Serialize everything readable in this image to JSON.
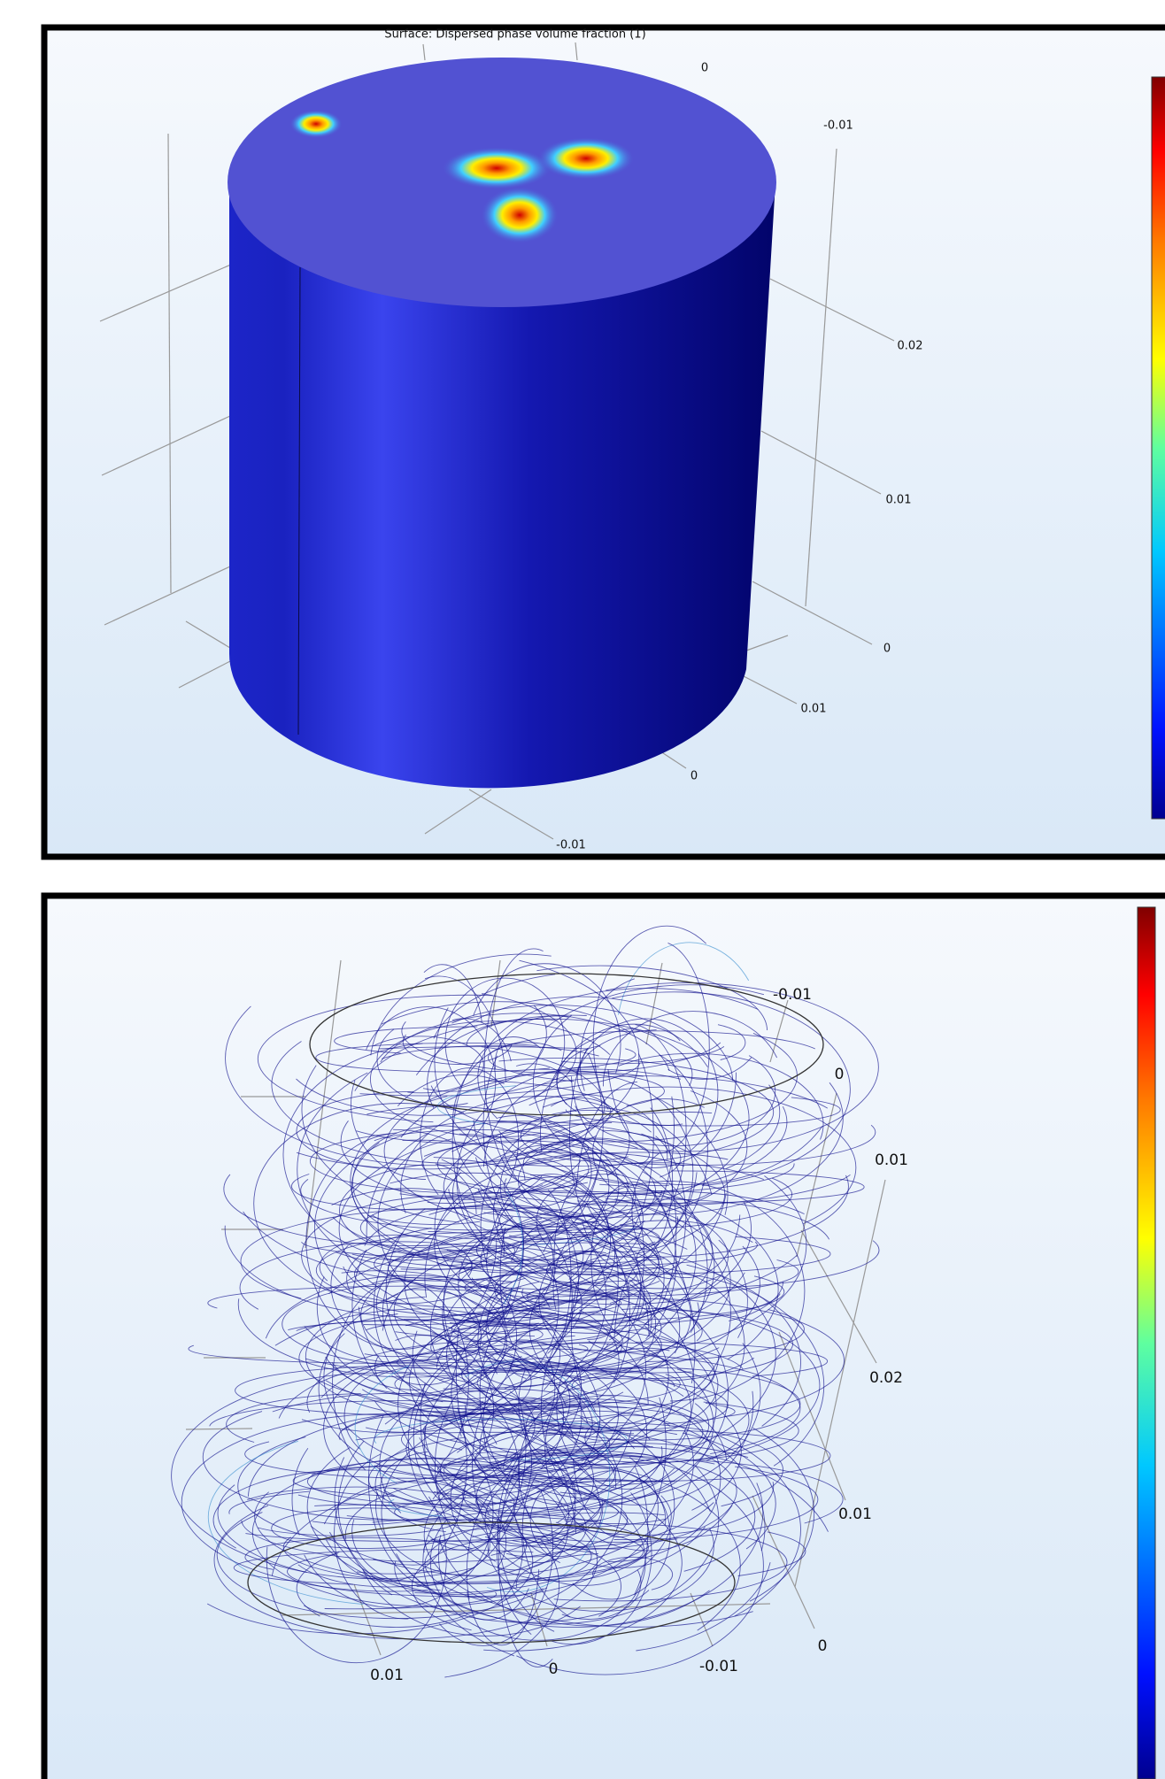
{
  "panels": [
    {
      "title": "Surface: Dispersed phase volume fraction (1)",
      "axis_labels": [
        "0",
        "-0.01",
        "0.02",
        "0.01",
        "0",
        "0.01",
        "0",
        "-0.01"
      ]
    },
    {
      "axis_labels": [
        "-0.01",
        "0",
        "0.01",
        "0.02",
        "0.01",
        "0",
        "0.01",
        "0",
        "-0.01"
      ]
    }
  ]
}
